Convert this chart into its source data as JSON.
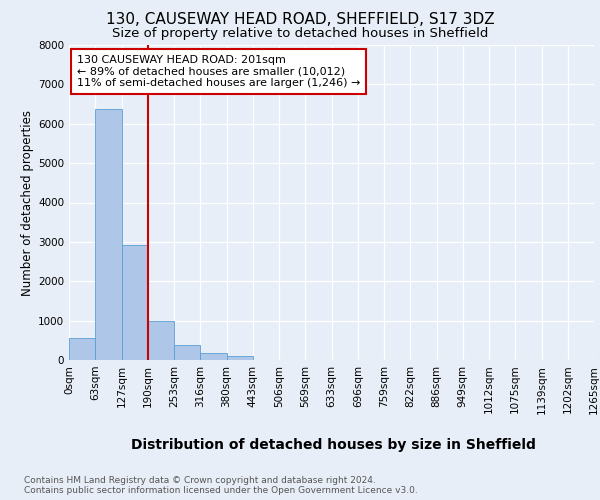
{
  "title1": "130, CAUSEWAY HEAD ROAD, SHEFFIELD, S17 3DZ",
  "title2": "Size of property relative to detached houses in Sheffield",
  "xlabel": "Distribution of detached houses by size in Sheffield",
  "ylabel": "Number of detached properties",
  "bar_heights": [
    550,
    6380,
    2920,
    980,
    390,
    170,
    90,
    0,
    0,
    0,
    0,
    0,
    0,
    0,
    0,
    0,
    0,
    0,
    0,
    0
  ],
  "bin_labels": [
    "0sqm",
    "63sqm",
    "127sqm",
    "190sqm",
    "253sqm",
    "316sqm",
    "380sqm",
    "443sqm",
    "506sqm",
    "569sqm",
    "633sqm",
    "696sqm",
    "759sqm",
    "822sqm",
    "886sqm",
    "949sqm",
    "1012sqm",
    "1075sqm",
    "1139sqm",
    "1202sqm",
    "1265sqm"
  ],
  "bar_color": "#aec6e8",
  "bar_edge_color": "#5a9fd4",
  "vline_x": 3,
  "vline_color": "#cc0000",
  "annotation_text": "130 CAUSEWAY HEAD ROAD: 201sqm\n← 89% of detached houses are smaller (10,012)\n11% of semi-detached houses are larger (1,246) →",
  "annotation_box_color": "#ffffff",
  "annotation_box_edge_color": "#cc0000",
  "ylim": [
    0,
    8000
  ],
  "yticks": [
    0,
    1000,
    2000,
    3000,
    4000,
    5000,
    6000,
    7000,
    8000
  ],
  "background_color": "#e8eef7",
  "footnote": "Contains HM Land Registry data © Crown copyright and database right 2024.\nContains public sector information licensed under the Open Government Licence v3.0.",
  "title1_fontsize": 11,
  "title2_fontsize": 9.5,
  "xlabel_fontsize": 10,
  "ylabel_fontsize": 8.5,
  "annotation_fontsize": 8,
  "tick_fontsize": 7.5,
  "footnote_fontsize": 6.5
}
